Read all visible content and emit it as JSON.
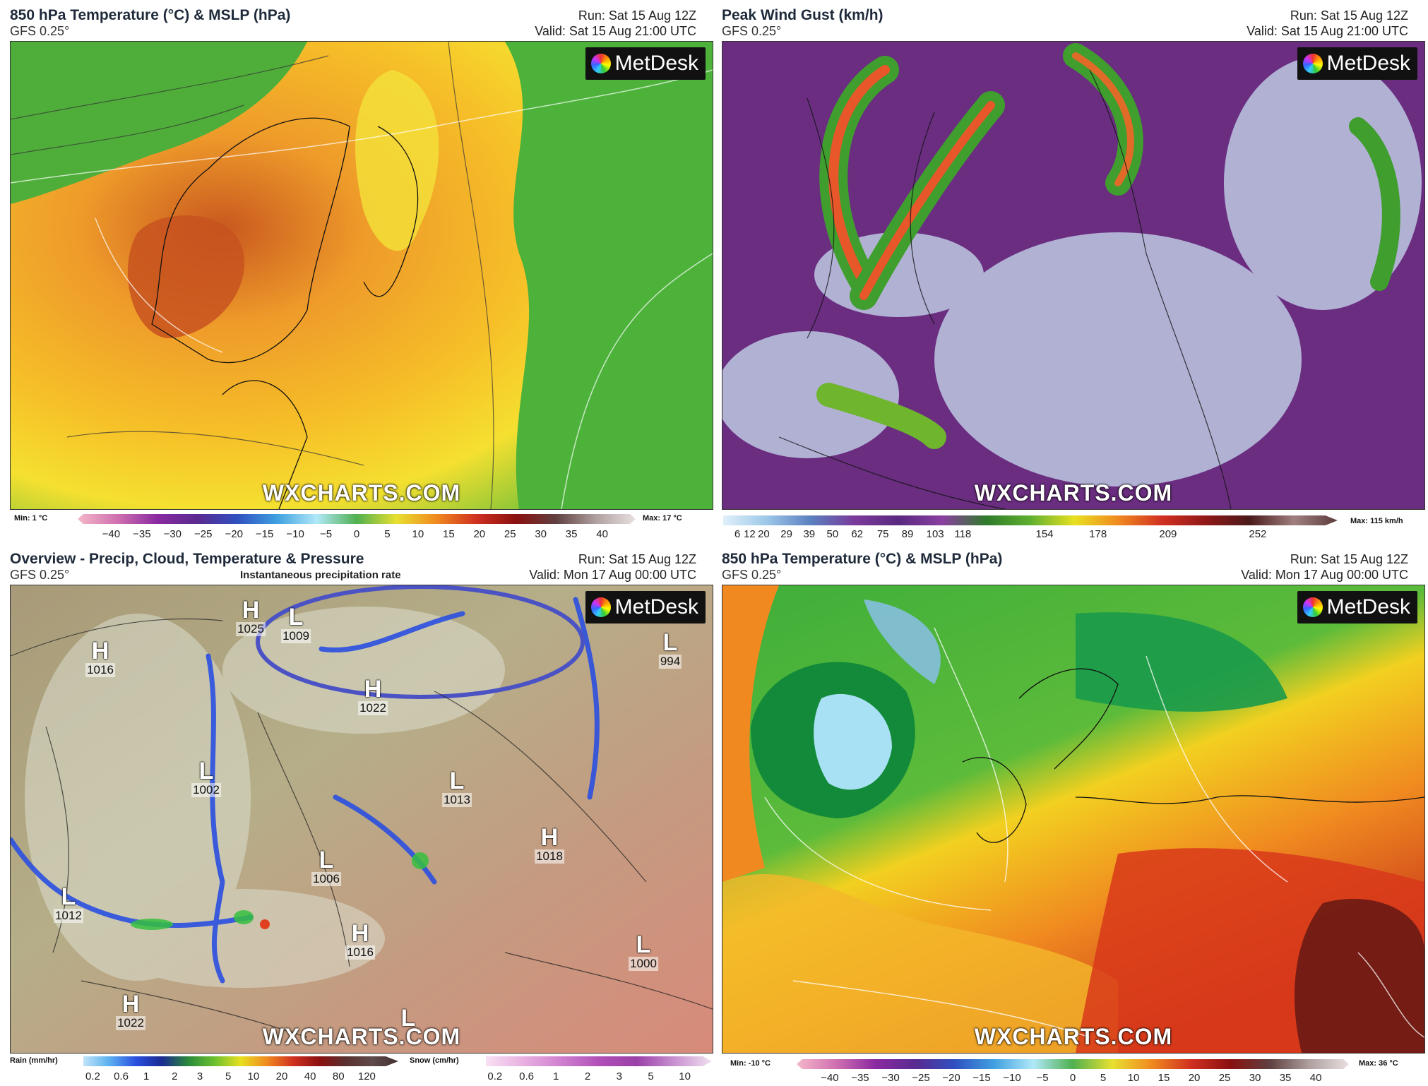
{
  "panels": [
    {
      "title": "850 hPa Temperature (°C) & MSLP (hPa)",
      "model": "GFS 0.25°",
      "run": "Run: Sat 15 Aug 12Z",
      "valid": "Valid: Sat 15 Aug 21:00 UTC",
      "watermark": "WXCHARTS.COM",
      "logo": "MetDesk",
      "min": "Min: 1 °C",
      "max": "Max: 17 °C",
      "ticks": [
        "−40",
        "−35",
        "−30",
        "−25",
        "−20",
        "−15",
        "−10",
        "−5",
        "0",
        "5",
        "10",
        "15",
        "20",
        "25",
        "30",
        "35",
        "40"
      ]
    },
    {
      "title": "Peak Wind Gust (km/h)",
      "model": "GFS 0.25°",
      "run": "Run: Sat 15 Aug 12Z",
      "valid": "Valid: Sat 15 Aug 21:00 UTC",
      "watermark": "WXCHARTS.COM",
      "logo": "MetDesk",
      "max": "Max: 115 km/h",
      "ticks": [
        "6",
        "12",
        "20",
        "29",
        "39",
        "50",
        "62",
        "75",
        "89",
        "103",
        "118",
        "154",
        "178",
        "209",
        "252"
      ]
    },
    {
      "title": "Overview - Precip, Cloud, Temperature & Pressure",
      "model": "GFS 0.25°",
      "subtitle": "Instantaneous precipitation rate",
      "run": "Run: Sat 15 Aug 12Z",
      "valid": "Valid: Mon 17 Aug 00:00 UTC",
      "watermark": "WXCHARTS.COM",
      "logo": "MetDesk",
      "rain_label": "Rain (mm/hr)",
      "snow_label": "Snow (cm/hr)",
      "rain_ticks": [
        "0.2",
        "0.6",
        "1",
        "2",
        "3",
        "5",
        "10",
        "20",
        "40",
        "80",
        "120"
      ],
      "snow_ticks": [
        "0.2",
        "0.6",
        "1",
        "2",
        "3",
        "5",
        "10"
      ],
      "pressure_centres": [
        {
          "sym": "H",
          "val": "1016"
        },
        {
          "sym": "H",
          "val": "1025"
        },
        {
          "sym": "L",
          "val": "1009"
        },
        {
          "sym": "H",
          "val": "1022"
        },
        {
          "sym": "L",
          "val": "994"
        },
        {
          "sym": "L",
          "val": "1002"
        },
        {
          "sym": "L",
          "val": "1013"
        },
        {
          "sym": "H",
          "val": "1018"
        },
        {
          "sym": "L",
          "val": "1006"
        },
        {
          "sym": "L",
          "val": "1012"
        },
        {
          "sym": "H",
          "val": "1016"
        },
        {
          "sym": "L",
          "val": "1000"
        },
        {
          "sym": "H",
          "val": "1022"
        },
        {
          "sym": "L",
          "val": ""
        }
      ]
    },
    {
      "title": "850 hPa Temperature (°C) & MSLP (hPa)",
      "model": "GFS 0.25°",
      "run": "Run: Sat 15 Aug 12Z",
      "valid": "Valid: Mon 17 Aug 00:00 UTC",
      "watermark": "WXCHARTS.COM",
      "logo": "MetDesk",
      "min": "Min: -10 °C",
      "max": "Max: 36 °C",
      "ticks": [
        "−40",
        "−35",
        "−30",
        "−25",
        "−20",
        "−15",
        "−10",
        "−5",
        "0",
        "5",
        "10",
        "15",
        "20",
        "25",
        "30",
        "35",
        "40"
      ]
    }
  ],
  "colors": {
    "temp_warm": "#f2a020",
    "temp_hot": "#c8361a",
    "temp_cool": "#3fae3a",
    "temp_cold": "#9fdcf0",
    "gust_bg": "#6a2d80",
    "gust_jet": "#e8572a",
    "precip_blue": "#2a4fe0",
    "circle": "#4b52c4"
  }
}
